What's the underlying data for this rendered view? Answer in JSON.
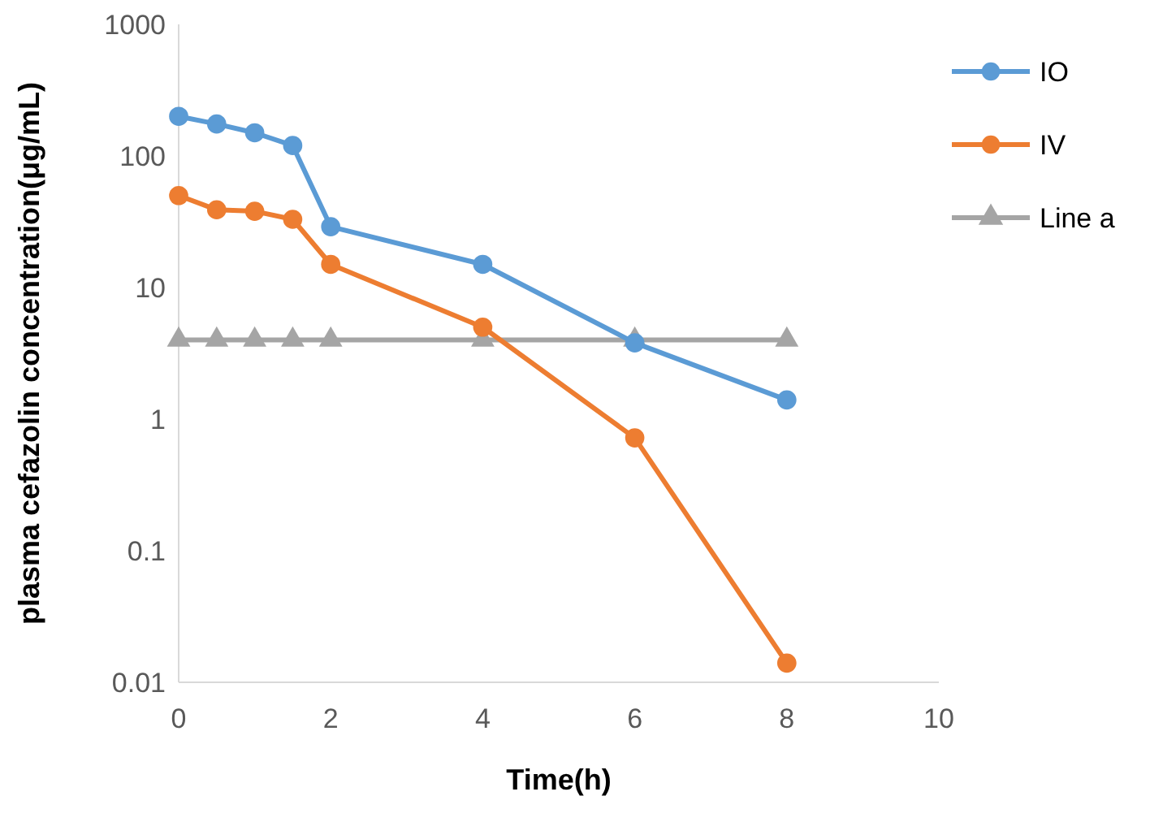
{
  "chart_data": {
    "type": "line",
    "xlabel": "Time(h)",
    "ylabel": "plasma cefazolin concentration(μg/mL)",
    "log": "y",
    "x": [
      0,
      0.5,
      1,
      1.5,
      2,
      4,
      6,
      8
    ],
    "series": [
      {
        "name": "IO",
        "color": "#5b9bd5",
        "values": [
          200,
          175,
          150,
          120,
          29,
          15,
          3.8,
          1.4
        ]
      },
      {
        "name": "IV",
        "color": "#ed7d31",
        "values": [
          50,
          39,
          38,
          33,
          15,
          5,
          0.72,
          0.014
        ]
      },
      {
        "name": "Line a",
        "color": "#a5a5a5",
        "marker": "triangle",
        "values": [
          4,
          4,
          4,
          4,
          4,
          4,
          4,
          4
        ]
      }
    ],
    "marker": "circle",
    "xlim": [
      0,
      10
    ],
    "xticks": [
      0,
      2,
      4,
      6,
      8,
      10
    ],
    "ylim": [
      0.01,
      1000
    ],
    "yticks": [
      0.01,
      0.1,
      1,
      10,
      100,
      1000
    ],
    "grid": false,
    "legend": "right"
  }
}
